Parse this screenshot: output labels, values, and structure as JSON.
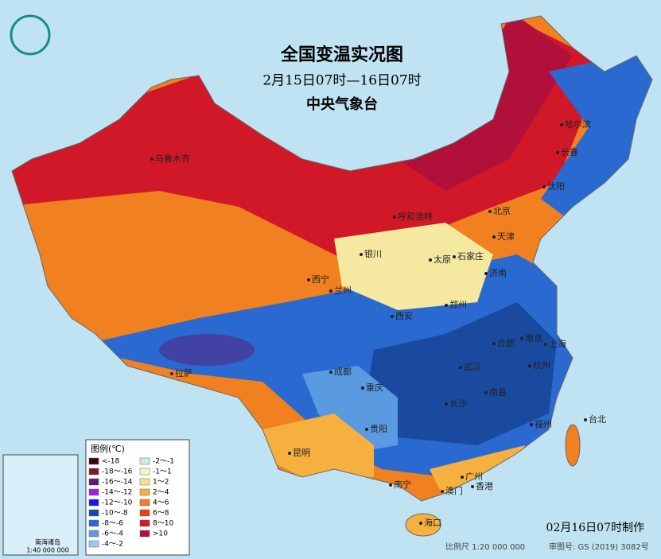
{
  "header": {
    "title": "全国变温实况图",
    "subtitle": "2月15日07时—16日07时",
    "issuer": "中央气象台"
  },
  "legend": {
    "title": "图例(℃)",
    "items": [
      {
        "label": "<-18",
        "color": "#3a0a0a"
      },
      {
        "label": "-18～-16",
        "color": "#7a1a2a"
      },
      {
        "label": "-16～-14",
        "color": "#5a1a7a"
      },
      {
        "label": "-14～-12",
        "color": "#a020e0"
      },
      {
        "label": "-12～-10",
        "color": "#1a1ae0"
      },
      {
        "label": "-10～-8",
        "color": "#1a4aa0"
      },
      {
        "label": "-8～-6",
        "color": "#2a6ad0"
      },
      {
        "label": "-6～-4",
        "color": "#5a9ae0"
      },
      {
        "label": "-4～-2",
        "color": "#9ac8f0"
      },
      {
        "label": "-2～-1",
        "color": "#c8f0e0"
      },
      {
        "label": "-1～1",
        "color": "#f5f5c8"
      },
      {
        "label": "1～2",
        "color": "#f8e08a"
      },
      {
        "label": "2～4",
        "color": "#f5b040"
      },
      {
        "label": "4～6",
        "color": "#f08020"
      },
      {
        "label": "6～8",
        "color": "#e84020"
      },
      {
        "label": "8～10",
        "color": "#d01828"
      },
      {
        "label": ">10",
        "color": "#b0103a"
      }
    ]
  },
  "cities": [
    "乌鲁木齐",
    "哈尔滨",
    "长春",
    "沈阳",
    "呼和浩特",
    "北京",
    "天津",
    "银川",
    "太原",
    "石家庄",
    "西宁",
    "兰州",
    "济南",
    "西安",
    "郑州",
    "拉萨",
    "合肥",
    "南京",
    "上海",
    "成都",
    "武汉",
    "杭州",
    "重庆",
    "长沙",
    "南昌",
    "贵阳",
    "台北",
    "福州",
    "昆明",
    "南宁",
    "广州",
    "香港",
    "澳门",
    "海口"
  ],
  "inset": {
    "title": "南海诸岛",
    "scale": "1:40 000 000"
  },
  "footer": {
    "made": "02月16日07时制作",
    "scale": "比例尺 1:20 000 000",
    "approval": "审图号: GS (2019) 3082号"
  }
}
